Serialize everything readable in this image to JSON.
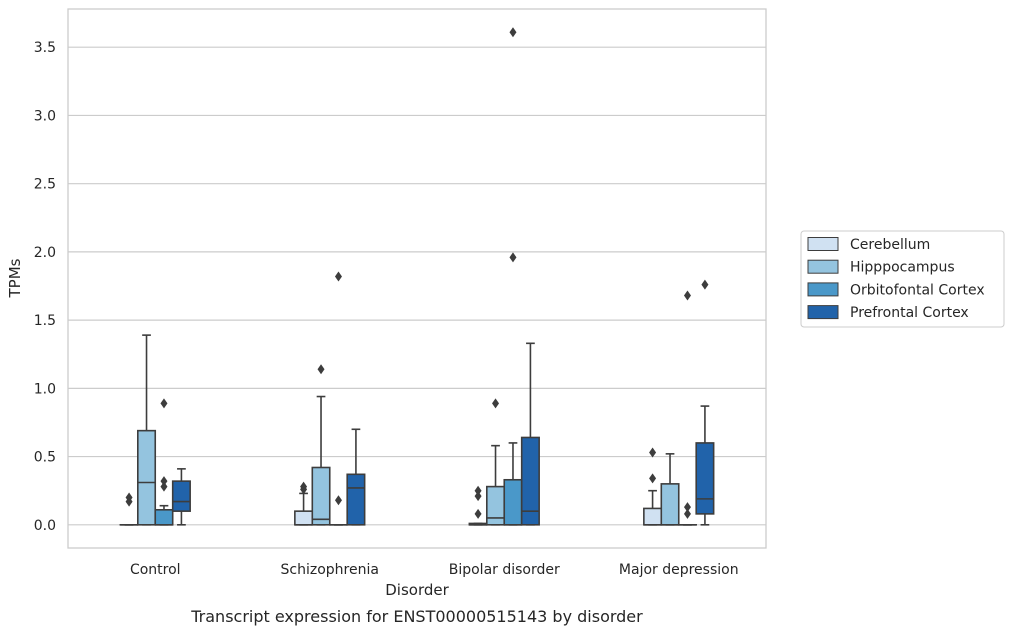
{
  "chart_data": {
    "type": "box",
    "title": "",
    "caption": "Transcript expression for ENST00000515143 by disorder",
    "xlabel": "Disorder",
    "ylabel": "TPMs",
    "ylim": [
      -0.17,
      3.78
    ],
    "yticks": [
      "0.0",
      "0.5",
      "1.0",
      "1.5",
      "2.0",
      "2.5",
      "3.0",
      "3.5"
    ],
    "grid": "horizontal",
    "legend": "right",
    "categories": [
      "Control",
      "Schizophrenia",
      "Bipolar disorder",
      "Major depression"
    ],
    "series": [
      {
        "name": "Cerebellum",
        "color": "#d0e1f2",
        "boxes": [
          {
            "q1": 0.0,
            "median": 0.0,
            "q3": 0.0,
            "whislo": 0.0,
            "whishi": 0.0,
            "fliers": [
              0.17,
              0.2
            ]
          },
          {
            "q1": 0.0,
            "median": 0.0,
            "q3": 0.1,
            "whislo": 0.0,
            "whishi": 0.23,
            "fliers": [
              0.26,
              0.28
            ]
          },
          {
            "q1": 0.0,
            "median": 0.0,
            "q3": 0.01,
            "whislo": 0.0,
            "whishi": 0.01,
            "fliers": [
              0.08,
              0.21,
              0.25
            ]
          },
          {
            "q1": 0.0,
            "median": 0.0,
            "q3": 0.12,
            "whislo": 0.0,
            "whishi": 0.25,
            "fliers": [
              0.34,
              0.53
            ]
          }
        ]
      },
      {
        "name": "Hipppocampus",
        "color": "#94c4df",
        "boxes": [
          {
            "q1": 0.0,
            "median": 0.31,
            "q3": 0.69,
            "whislo": 0.0,
            "whishi": 1.39,
            "fliers": []
          },
          {
            "q1": 0.0,
            "median": 0.04,
            "q3": 0.42,
            "whislo": 0.0,
            "whishi": 0.94,
            "fliers": [
              1.14
            ]
          },
          {
            "q1": 0.0,
            "median": 0.05,
            "q3": 0.28,
            "whislo": 0.0,
            "whishi": 0.58,
            "fliers": [
              0.89
            ]
          },
          {
            "q1": 0.0,
            "median": 0.0,
            "q3": 0.3,
            "whislo": 0.0,
            "whishi": 0.52,
            "fliers": []
          }
        ]
      },
      {
        "name": "Orbitofontal Cortex",
        "color": "#4a98c9",
        "boxes": [
          {
            "q1": 0.0,
            "median": 0.0,
            "q3": 0.11,
            "whislo": 0.0,
            "whishi": 0.14,
            "fliers": [
              0.28,
              0.32,
              0.89
            ]
          },
          {
            "q1": 0.0,
            "median": 0.0,
            "q3": 0.0,
            "whislo": 0.0,
            "whishi": 0.0,
            "fliers": [
              0.18,
              1.82
            ]
          },
          {
            "q1": 0.0,
            "median": 0.0,
            "q3": 0.33,
            "whislo": 0.0,
            "whishi": 0.6,
            "fliers": [
              1.96,
              3.61
            ]
          },
          {
            "q1": 0.0,
            "median": 0.0,
            "q3": 0.0,
            "whislo": 0.0,
            "whishi": 0.0,
            "fliers": [
              0.08,
              0.13,
              1.68
            ]
          }
        ]
      },
      {
        "name": "Prefrontal Cortex",
        "color": "#2163aa",
        "boxes": [
          {
            "q1": 0.1,
            "median": 0.17,
            "q3": 0.32,
            "whislo": 0.0,
            "whishi": 0.41,
            "fliers": []
          },
          {
            "q1": 0.0,
            "median": 0.27,
            "q3": 0.37,
            "whislo": 0.0,
            "whishi": 0.7,
            "fliers": []
          },
          {
            "q1": 0.0,
            "median": 0.1,
            "q3": 0.64,
            "whislo": 0.0,
            "whishi": 1.33,
            "fliers": []
          },
          {
            "q1": 0.08,
            "median": 0.19,
            "q3": 0.6,
            "whislo": 0.0,
            "whishi": 0.87,
            "fliers": [
              1.76
            ]
          }
        ]
      }
    ]
  }
}
